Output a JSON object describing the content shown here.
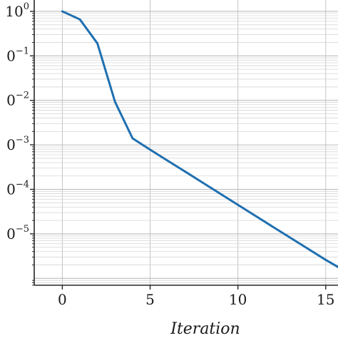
{
  "chart_data": {
    "type": "line",
    "title": "",
    "xlabel": "Iteration",
    "ylabel": "",
    "xscale": "linear",
    "yscale": "log",
    "xlim": [
      -1.6,
      15.7
    ],
    "ylim": [
      7e-07,
      1.8
    ],
    "grid": true,
    "x_ticks": [
      0,
      5,
      10,
      15
    ],
    "x_tick_labels": [
      "0",
      "5",
      "10",
      "15"
    ],
    "y_ticks": [
      1,
      0.1,
      0.01,
      0.001,
      0.0001,
      1e-05
    ],
    "y_tick_labels": [
      {
        "base": "10",
        "exp": "0"
      },
      {
        "base": "0",
        "exp": "−1"
      },
      {
        "base": "0",
        "exp": "−2"
      },
      {
        "base": "0",
        "exp": "−3"
      },
      {
        "base": "0",
        "exp": "−4"
      },
      {
        "base": "0",
        "exp": "−5"
      }
    ],
    "series": [
      {
        "color": "#1f6fb0",
        "x": [
          0,
          1,
          2,
          3,
          4,
          5,
          6,
          7,
          8,
          9,
          10,
          11,
          12,
          13,
          14,
          15,
          15.7
        ],
        "y": [
          1.0,
          0.66,
          0.19,
          0.0093,
          0.0014,
          0.00078,
          0.00044,
          0.00025,
          0.000141,
          7.95e-05,
          4.49e-05,
          2.53e-05,
          1.43e-05,
          8.1e-06,
          4.6e-06,
          2.6e-06,
          1.8e-06
        ]
      }
    ]
  }
}
